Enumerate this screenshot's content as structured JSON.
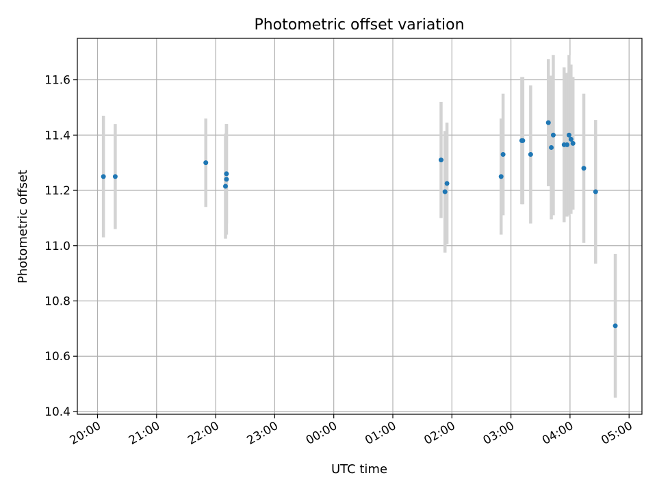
{
  "chart_data": {
    "type": "scatter",
    "title": "Photometric offset variation",
    "xlabel": "UTC time",
    "ylabel": "Photometric offset",
    "grid": true,
    "x_ticks": [
      "20:00",
      "21:00",
      "22:00",
      "23:00",
      "00:00",
      "01:00",
      "02:00",
      "03:00",
      "04:00",
      "05:00"
    ],
    "y_ticks": [
      "10.4",
      "10.6",
      "10.8",
      "11.0",
      "11.2",
      "11.4",
      "11.6"
    ],
    "xlim": [
      "19:50",
      "05:10"
    ],
    "ylim": [
      10.39,
      11.75
    ],
    "series": [
      {
        "marker_color": "#1f77b4",
        "errorbar_color": "#d3d3d3",
        "points": [
          {
            "t": "20:06",
            "y": 11.25,
            "err": 0.22
          },
          {
            "t": "20:18",
            "y": 11.25,
            "err": 0.19
          },
          {
            "t": "21:50",
            "y": 11.3,
            "err": 0.16
          },
          {
            "t": "22:10",
            "y": 11.215,
            "err": 0.19
          },
          {
            "t": "22:11",
            "y": 11.24,
            "err": 0.2
          },
          {
            "t": "22:11",
            "y": 11.26,
            "err": 0.18
          },
          {
            "t": "01:49",
            "y": 11.31,
            "err": 0.21
          },
          {
            "t": "01:53",
            "y": 11.195,
            "err": 0.22
          },
          {
            "t": "01:55",
            "y": 11.225,
            "err": 0.22
          },
          {
            "t": "02:50",
            "y": 11.25,
            "err": 0.21
          },
          {
            "t": "02:52",
            "y": 11.33,
            "err": 0.22
          },
          {
            "t": "03:11",
            "y": 11.38,
            "err": 0.23
          },
          {
            "t": "03:12",
            "y": 11.38,
            "err": 0.23
          },
          {
            "t": "03:20",
            "y": 11.33,
            "err": 0.25
          },
          {
            "t": "03:38",
            "y": 11.445,
            "err": 0.23
          },
          {
            "t": "03:41",
            "y": 11.355,
            "err": 0.26
          },
          {
            "t": "03:43",
            "y": 11.4,
            "err": 0.29
          },
          {
            "t": "03:54",
            "y": 11.365,
            "err": 0.28
          },
          {
            "t": "03:57",
            "y": 11.365,
            "err": 0.26
          },
          {
            "t": "03:59",
            "y": 11.4,
            "err": 0.29
          },
          {
            "t": "04:01",
            "y": 11.385,
            "err": 0.27
          },
          {
            "t": "04:03",
            "y": 11.37,
            "err": 0.24
          },
          {
            "t": "04:14",
            "y": 11.28,
            "err": 0.27
          },
          {
            "t": "04:26",
            "y": 11.195,
            "err": 0.26
          },
          {
            "t": "04:46",
            "y": 10.71,
            "err": 0.26
          }
        ]
      }
    ]
  }
}
